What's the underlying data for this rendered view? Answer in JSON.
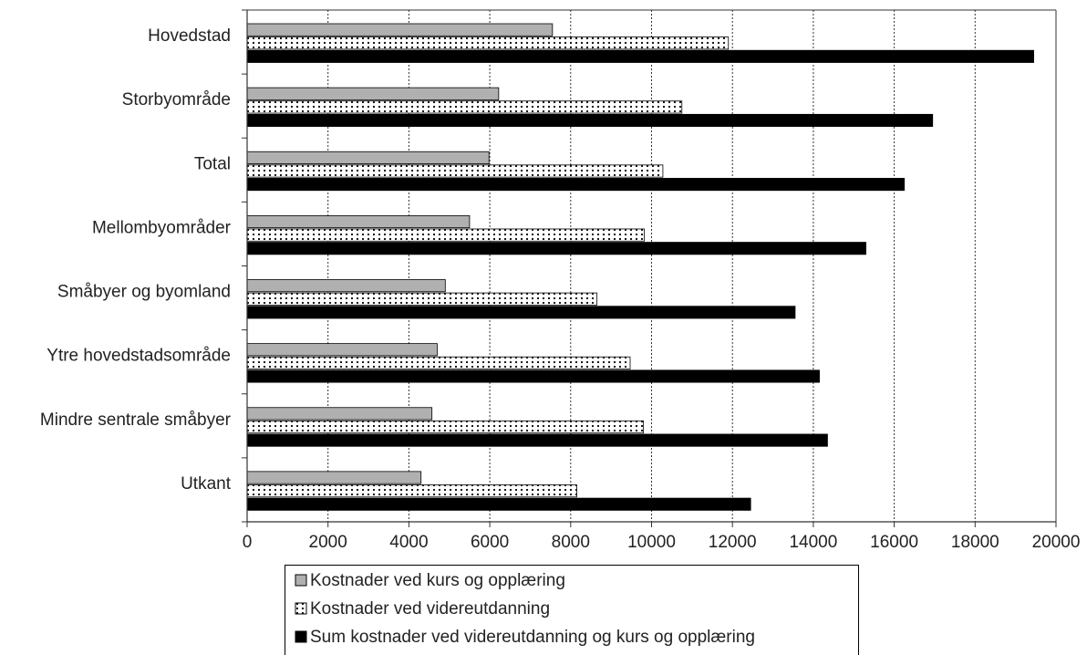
{
  "chart_data": {
    "type": "bar",
    "orientation": "horizontal",
    "categories": [
      "Hovedstad",
      "Storbyområde",
      "Total",
      "Mellombyområder",
      "Småbyer og byomland",
      "Ytre hovedstadsområde",
      "Mindre sentrale småbyer",
      "Utkant"
    ],
    "series": [
      {
        "name": "Kostnader ved kurs og opplæring",
        "values": [
          7550,
          6220,
          5980,
          5500,
          4900,
          4700,
          4570,
          4300
        ],
        "color": "#b0b0b0",
        "pattern": "solid-gray"
      },
      {
        "name": "Kostnader ved videreutdanning",
        "values": [
          11900,
          10750,
          10280,
          9820,
          8650,
          9470,
          9800,
          8150
        ],
        "color": "#ffffff",
        "pattern": "dotted"
      },
      {
        "name": "Sum kostnader ved videreutdanning og kurs og opplæring",
        "values": [
          19450,
          16950,
          16250,
          15300,
          13550,
          14150,
          14350,
          12450
        ],
        "color": "#000000",
        "pattern": "solid-black"
      }
    ],
    "xticks": [
      "0",
      "2000",
      "4000",
      "6000",
      "8000",
      "10000",
      "12000",
      "14000",
      "16000",
      "18000",
      "20000"
    ],
    "xlim": [
      0,
      20000
    ],
    "grid": "vertical",
    "legend_position": "bottom",
    "title": "",
    "xlabel": "",
    "ylabel": ""
  }
}
